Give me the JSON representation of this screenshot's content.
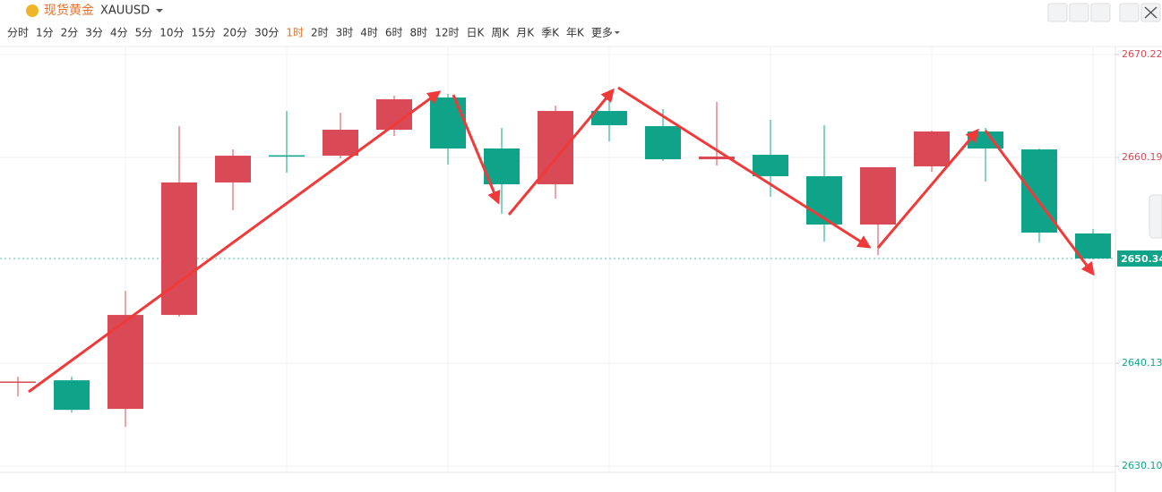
{
  "header": {
    "title": "现货黄金",
    "symbol": "XAUUSD"
  },
  "intervals": {
    "items": [
      "分时",
      "1分",
      "2分",
      "3分",
      "4分",
      "5分",
      "10分",
      "15分",
      "20分",
      "30分",
      "1时",
      "2时",
      "3时",
      "4时",
      "6时",
      "8时",
      "12时",
      "日K",
      "周K",
      "月K",
      "季K",
      "年K",
      "更多"
    ],
    "active_index": 10
  },
  "chart_data": {
    "type": "candlestick",
    "open": [
      2638.25,
      2638.47,
      2635.68,
      2644.84,
      2657.75,
      2660.4,
      2660.36,
      2662.89,
      2666.03,
      2661.06,
      2657.57,
      2664.72,
      2663.24,
      2660.01,
      2660.45,
      2658.36,
      2653.65,
      2659.32,
      2662.72,
      2660.97,
      2652.78
    ],
    "high": [
      2638.82,
      2638.82,
      2647.19,
      2663.24,
      2660.97,
      2664.72,
      2664.55,
      2666.21,
      2666.38,
      2663.07,
      2665.25,
      2666.29,
      2664.9,
      2665.6,
      2663.85,
      2663.33,
      2659.23,
      2662.81,
      2663.07,
      2661.06,
      2653.21
    ],
    "low": [
      2636.9,
      2635.33,
      2633.94,
      2644.66,
      2655.04,
      2658.71,
      2660.1,
      2662.28,
      2659.49,
      2654.69,
      2656.18,
      2661.76,
      2659.84,
      2659.4,
      2656.35,
      2651.99,
      2650.68,
      2658.79,
      2657.83,
      2651.9,
      2650.25
    ],
    "close": [
      2638.35,
      2635.59,
      2644.84,
      2657.75,
      2660.36,
      2660.36,
      2662.89,
      2665.86,
      2661.06,
      2657.57,
      2664.72,
      2663.33,
      2660.01,
      2660.28,
      2658.36,
      2653.65,
      2659.23,
      2662.72,
      2661.06,
      2652.86,
      2650.34
    ],
    "up_color": "#d94a56",
    "down_color": "#0fa48a",
    "ylim": [
      2629.5,
      2671.0
    ],
    "yticks": [
      2670.22,
      2660.19,
      2640.13,
      {
        "value": 2630.1,
        "label": "2630.10"
      }
    ],
    "last_price": 2650.34,
    "grid": true
  }
}
